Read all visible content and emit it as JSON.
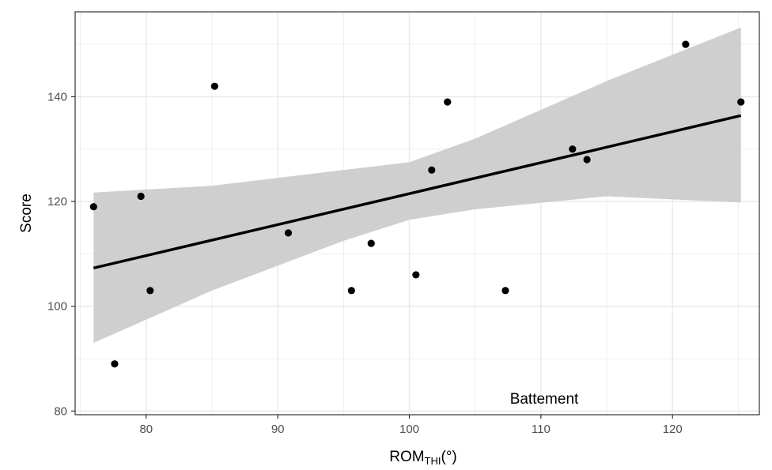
{
  "chart_data": {
    "type": "scatter",
    "title": "",
    "xlabel_main": "ROM",
    "xlabel_sub": "THI",
    "xlabel_unit": "(°)",
    "ylabel": "Score",
    "annotation": "Battement",
    "xlim": [
      74.6,
      126.6
    ],
    "ylim": [
      79.3,
      156.2
    ],
    "x_ticks": [
      80,
      90,
      100,
      110,
      120
    ],
    "x_tick_labels": [
      "80",
      "90",
      "100",
      "110",
      "120"
    ],
    "y_ticks": [
      80,
      100,
      120,
      140
    ],
    "y_tick_labels": [
      "80",
      "100",
      "120",
      "140"
    ],
    "grid": true,
    "points": [
      {
        "x": 76.0,
        "y": 119
      },
      {
        "x": 77.6,
        "y": 89
      },
      {
        "x": 79.6,
        "y": 121
      },
      {
        "x": 80.3,
        "y": 103
      },
      {
        "x": 85.2,
        "y": 142
      },
      {
        "x": 90.8,
        "y": 114
      },
      {
        "x": 95.6,
        "y": 103
      },
      {
        "x": 97.1,
        "y": 112
      },
      {
        "x": 100.5,
        "y": 106
      },
      {
        "x": 101.7,
        "y": 126
      },
      {
        "x": 102.9,
        "y": 139
      },
      {
        "x": 107.3,
        "y": 103
      },
      {
        "x": 112.4,
        "y": 130
      },
      {
        "x": 113.5,
        "y": 128
      },
      {
        "x": 121.0,
        "y": 150
      },
      {
        "x": 125.2,
        "y": 139
      }
    ],
    "fit_line": {
      "x": [
        76.0,
        125.2
      ],
      "y": [
        107.3,
        136.4
      ]
    },
    "confidence_band": {
      "x": [
        76.0,
        85.0,
        95.0,
        100.0,
        105.0,
        115.0,
        125.2
      ],
      "lower": [
        93.0,
        103.0,
        112.5,
        116.5,
        118.5,
        121.0,
        119.8
      ],
      "upper": [
        121.7,
        123.0,
        126.0,
        127.5,
        132.0,
        143.0,
        153.2
      ]
    },
    "colors": {
      "points": "#000000",
      "line": "#000000",
      "band": "#cccccc",
      "grid": "#ebebeb",
      "panel_border": "#333333"
    }
  }
}
